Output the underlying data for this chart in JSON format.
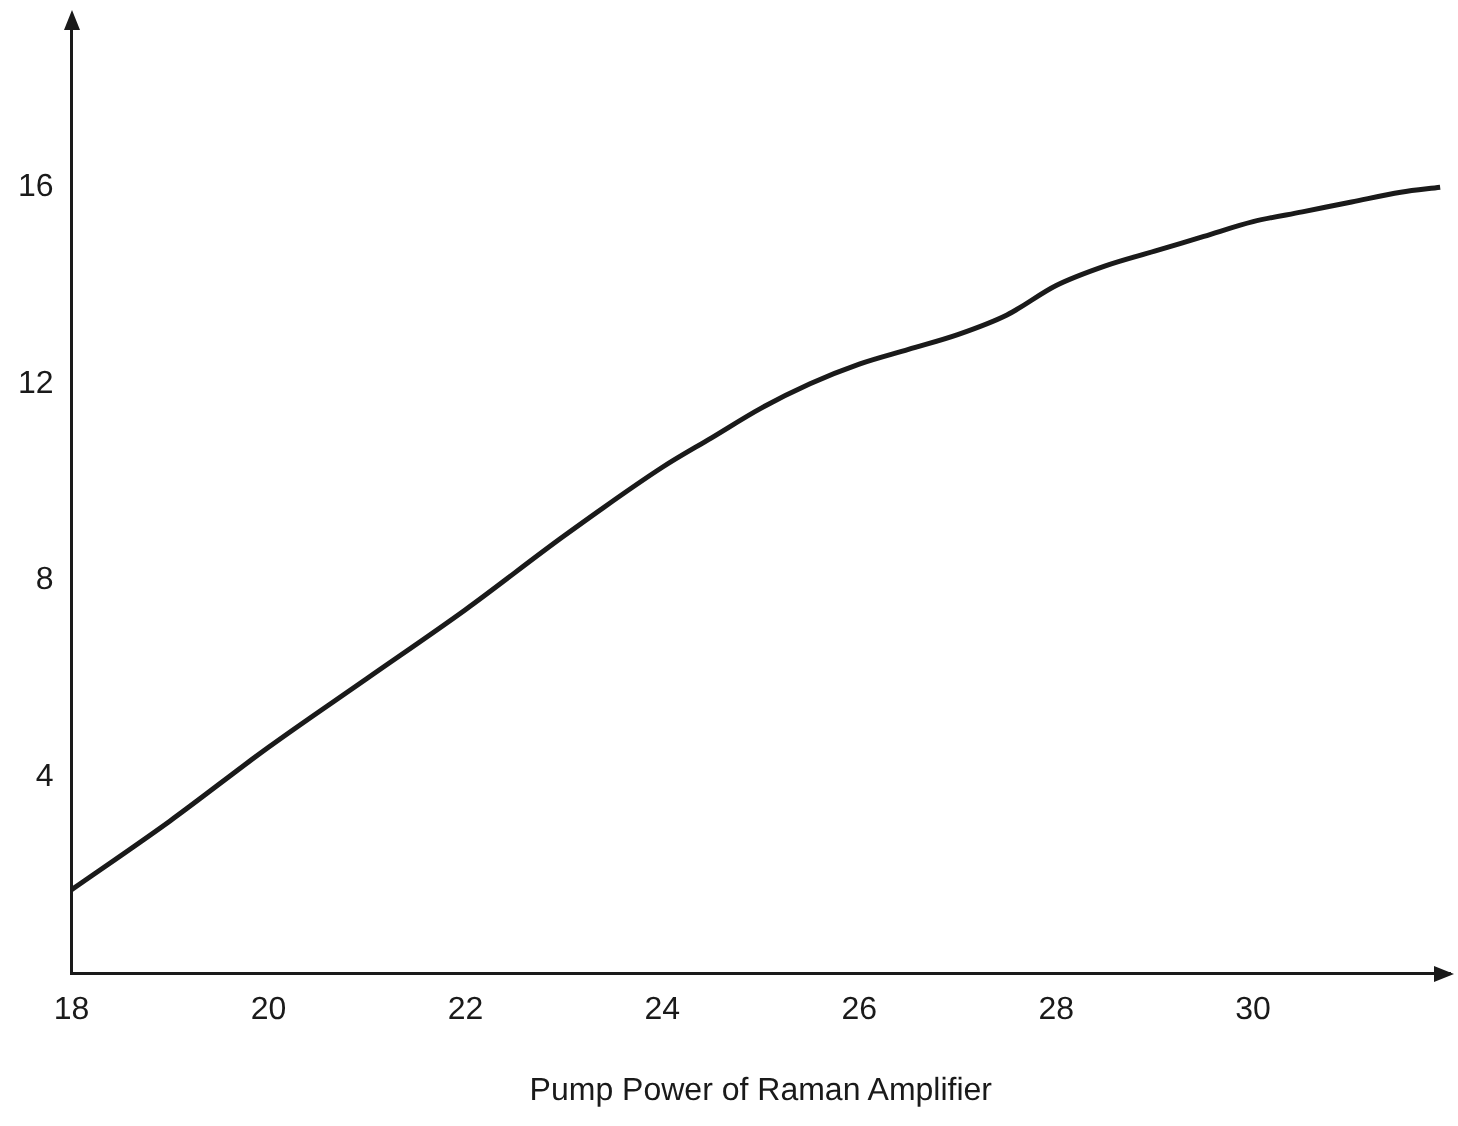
{
  "chart_data": {
    "type": "line",
    "xlabel": "Pump Power of Raman Amplifier",
    "x": [
      18,
      19,
      20,
      21,
      22,
      23,
      24,
      24.5,
      25,
      25.5,
      26,
      26.5,
      27,
      27.5,
      28,
      28.5,
      29,
      29.5,
      30,
      30.5,
      31,
      31.5,
      31.9
    ],
    "series": [
      {
        "color": "#1a1a1a",
        "values": [
          1.7,
          3.1,
          4.6,
          6.0,
          7.4,
          8.9,
          10.3,
          10.9,
          11.5,
          12.0,
          12.4,
          12.7,
          13.0,
          13.4,
          14.0,
          14.4,
          14.7,
          15.0,
          15.3,
          15.5,
          15.7,
          15.9,
          16.0
        ]
      }
    ],
    "xlim": [
      18,
      32
    ],
    "xticks": [
      18,
      20,
      22,
      24,
      26,
      28,
      30
    ],
    "ylim": [
      0,
      19.3
    ],
    "yticks": [
      4,
      8,
      12,
      16
    ],
    "grid": false,
    "legend": false,
    "marker": "none",
    "line_style": "solid"
  }
}
